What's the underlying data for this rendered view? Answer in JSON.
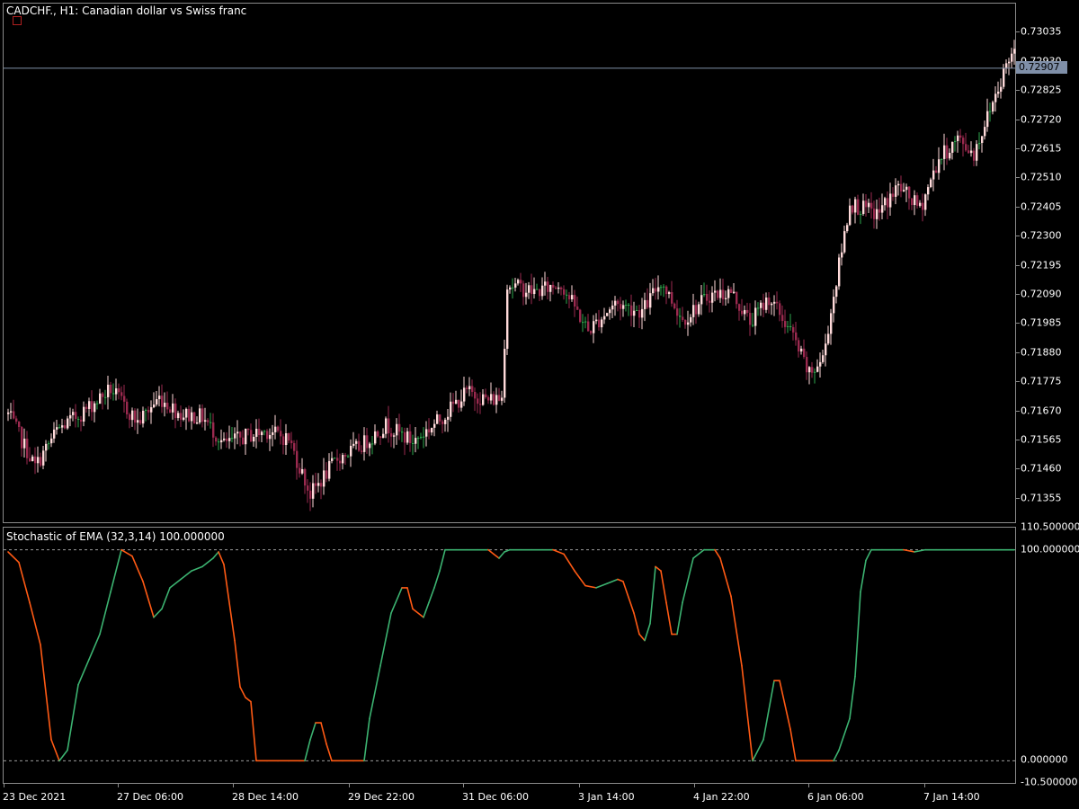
{
  "header": {
    "symbol_line": "CADCHF., H1:  Canadian dollar vs Swiss franc",
    "indicator_line": "Stochastic of EMA (32,3,14) 100.000000"
  },
  "colors": {
    "bull": "#ffdada",
    "bear": "#9b2a4f",
    "doji": "#2ea84e",
    "stoch_up": "#3cb371",
    "stoch_down": "#ff5a14",
    "grid_dash": "#9a9a9a",
    "price_line": "#8090a8",
    "current_marker": "#b02020"
  },
  "price_axis": {
    "ticks": [
      "0.73035",
      "0.72930",
      "0.72825",
      "0.72720",
      "0.72615",
      "0.72510",
      "0.72405",
      "0.72300",
      "0.72195",
      "0.72090",
      "0.71985",
      "0.71880",
      "0.71775",
      "0.71670",
      "0.71565",
      "0.71460",
      "0.71355"
    ],
    "current_price": "0.72907"
  },
  "indicator_axis": {
    "ticks": [
      "110.500000",
      "100.000000",
      "0.000000",
      "-10.500000"
    ]
  },
  "time_axis": {
    "labels": [
      "23 Dec 2021",
      "27 Dec 06:00",
      "28 Dec 14:00",
      "29 Dec 22:00",
      "31 Dec 06:00",
      "3 Jan 14:00",
      "4 Jan 22:00",
      "6 Jan 06:00",
      "7 Jan 14:00"
    ]
  },
  "chart_data": [
    {
      "type": "candlestick",
      "symbol": "CADCHF.",
      "timeframe": "H1",
      "ylim": [
        0.7127,
        0.7314
      ],
      "current_price": 0.72907,
      "anchors": [
        [
          0,
          0.7166
        ],
        [
          10,
          0.7147
        ],
        [
          18,
          0.716
        ],
        [
          28,
          0.7167
        ],
        [
          38,
          0.7175
        ],
        [
          48,
          0.7163
        ],
        [
          56,
          0.7172
        ],
        [
          64,
          0.7166
        ],
        [
          72,
          0.7165
        ],
        [
          80,
          0.7155
        ],
        [
          88,
          0.7158
        ],
        [
          96,
          0.716
        ],
        [
          104,
          0.7157
        ],
        [
          112,
          0.7137
        ],
        [
          122,
          0.715
        ],
        [
          130,
          0.7154
        ],
        [
          140,
          0.7162
        ],
        [
          150,
          0.7156
        ],
        [
          160,
          0.7164
        ],
        [
          170,
          0.7174
        ],
        [
          178,
          0.7171
        ],
        [
          183,
          0.7172
        ],
        [
          185,
          0.7213
        ],
        [
          195,
          0.721
        ],
        [
          205,
          0.7213
        ],
        [
          215,
          0.7196
        ],
        [
          225,
          0.7206
        ],
        [
          235,
          0.7203
        ],
        [
          242,
          0.7214
        ],
        [
          250,
          0.72
        ],
        [
          260,
          0.7209
        ],
        [
          268,
          0.721
        ],
        [
          275,
          0.7199
        ],
        [
          282,
          0.7208
        ],
        [
          290,
          0.7196
        ],
        [
          297,
          0.718
        ],
        [
          302,
          0.7186
        ],
        [
          305,
          0.7203
        ],
        [
          312,
          0.7242
        ],
        [
          322,
          0.7238
        ],
        [
          330,
          0.7248
        ],
        [
          338,
          0.724
        ],
        [
          345,
          0.7258
        ],
        [
          352,
          0.7265
        ],
        [
          358,
          0.726
        ],
        [
          364,
          0.7276
        ],
        [
          370,
          0.7292
        ],
        [
          373,
          0.7298
        ]
      ]
    },
    {
      "type": "line",
      "name": "Stochastic of EMA (32,3,14)",
      "ylim": [
        -10.5,
        110.5
      ],
      "levels": [
        0,
        100
      ],
      "points": [
        [
          0,
          99
        ],
        [
          4,
          94
        ],
        [
          8,
          75
        ],
        [
          12,
          55
        ],
        [
          16,
          10
        ],
        [
          19,
          0
        ],
        [
          22,
          5
        ],
        [
          26,
          36
        ],
        [
          30,
          48
        ],
        [
          34,
          60
        ],
        [
          38,
          80
        ],
        [
          42,
          100
        ],
        [
          46,
          97
        ],
        [
          50,
          85
        ],
        [
          54,
          68
        ],
        [
          57,
          72
        ],
        [
          60,
          82
        ],
        [
          64,
          86
        ],
        [
          68,
          90
        ],
        [
          72,
          92
        ],
        [
          76,
          96
        ],
        [
          78,
          99
        ],
        [
          80,
          93
        ],
        [
          84,
          57
        ],
        [
          86,
          35
        ],
        [
          88,
          30
        ],
        [
          90,
          28
        ],
        [
          92,
          0
        ],
        [
          96,
          0
        ],
        [
          100,
          0
        ],
        [
          104,
          0
        ],
        [
          108,
          0
        ],
        [
          110,
          0
        ],
        [
          112,
          10
        ],
        [
          114,
          18
        ],
        [
          116,
          18
        ],
        [
          118,
          8
        ],
        [
          120,
          0
        ],
        [
          124,
          0
        ],
        [
          128,
          0
        ],
        [
          132,
          0
        ],
        [
          134,
          20
        ],
        [
          138,
          45
        ],
        [
          142,
          70
        ],
        [
          146,
          82
        ],
        [
          148,
          82
        ],
        [
          150,
          72
        ],
        [
          154,
          68
        ],
        [
          156,
          75
        ],
        [
          158,
          82
        ],
        [
          160,
          90
        ],
        [
          162,
          100
        ],
        [
          166,
          100
        ],
        [
          170,
          100
        ],
        [
          174,
          100
        ],
        [
          178,
          100
        ],
        [
          180,
          98
        ],
        [
          182,
          96
        ],
        [
          184,
          99
        ],
        [
          186,
          100
        ],
        [
          190,
          100
        ],
        [
          194,
          100
        ],
        [
          198,
          100
        ],
        [
          202,
          100
        ],
        [
          206,
          98
        ],
        [
          210,
          90
        ],
        [
          214,
          83
        ],
        [
          218,
          82
        ],
        [
          222,
          84
        ],
        [
          226,
          86
        ],
        [
          228,
          85
        ],
        [
          232,
          70
        ],
        [
          234,
          60
        ],
        [
          236,
          57
        ],
        [
          238,
          65
        ],
        [
          240,
          92
        ],
        [
          242,
          90
        ],
        [
          244,
          75
        ],
        [
          246,
          60
        ],
        [
          248,
          60
        ],
        [
          250,
          75
        ],
        [
          254,
          96
        ],
        [
          258,
          100
        ],
        [
          262,
          100
        ],
        [
          264,
          96
        ],
        [
          268,
          78
        ],
        [
          272,
          45
        ],
        [
          276,
          0
        ],
        [
          280,
          10
        ],
        [
          284,
          38
        ],
        [
          286,
          38
        ],
        [
          290,
          15
        ],
        [
          292,
          0
        ],
        [
          296,
          0
        ],
        [
          300,
          0
        ],
        [
          304,
          0
        ],
        [
          306,
          0
        ],
        [
          308,
          5
        ],
        [
          312,
          20
        ],
        [
          314,
          40
        ],
        [
          316,
          80
        ],
        [
          318,
          95
        ],
        [
          320,
          100
        ],
        [
          324,
          100
        ],
        [
          328,
          100
        ],
        [
          332,
          100
        ],
        [
          336,
          99
        ],
        [
          340,
          100
        ],
        [
          344,
          100
        ],
        [
          348,
          100
        ],
        [
          352,
          100
        ],
        [
          356,
          100
        ],
        [
          360,
          100
        ],
        [
          364,
          100
        ],
        [
          368,
          100
        ],
        [
          372,
          100
        ],
        [
          373,
          100
        ]
      ]
    }
  ]
}
